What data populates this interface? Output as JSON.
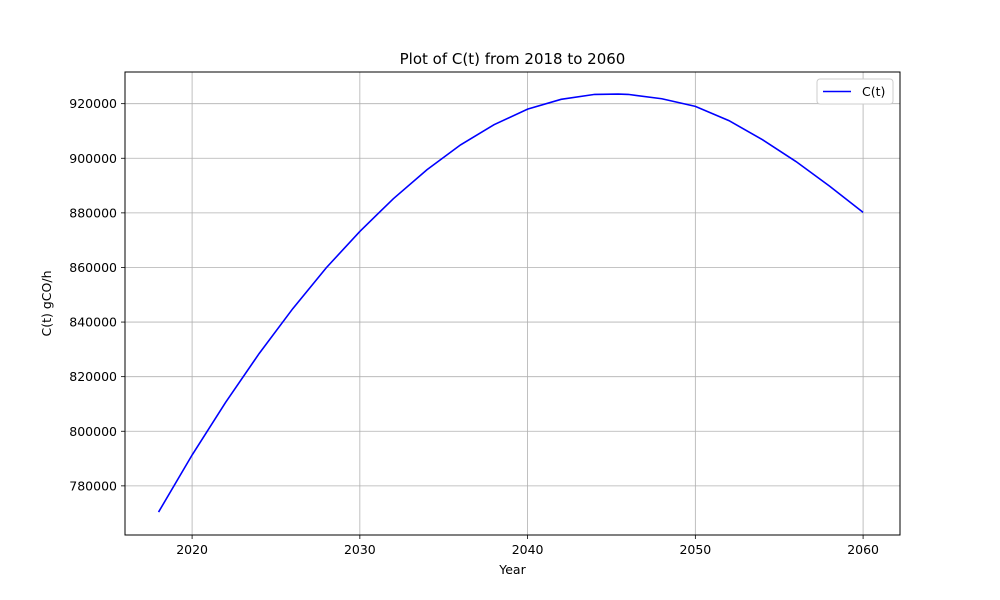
{
  "chart_data": {
    "type": "line",
    "title": "Plot of C(t) from 2018 to 2060",
    "xlabel": "Year",
    "ylabel": "C(t) gCO/h",
    "xlim": [
      2016,
      2062.2
    ],
    "ylim": [
      762000,
      931600
    ],
    "x_ticks": [
      2020,
      2030,
      2040,
      2050,
      2060
    ],
    "y_ticks": [
      780000,
      800000,
      820000,
      840000,
      860000,
      880000,
      900000,
      920000
    ],
    "grid": true,
    "legend_position": "top-right",
    "series": [
      {
        "name": "C(t)",
        "color": "#0000ff",
        "x": [
          2018,
          2020,
          2022,
          2024,
          2026,
          2028,
          2030,
          2032,
          2034,
          2036,
          2038,
          2040,
          2042,
          2044,
          2045.4,
          2046,
          2048,
          2050,
          2052,
          2054,
          2056,
          2058,
          2060
        ],
        "y": [
          770400,
          791300,
          810600,
          828500,
          844900,
          859900,
          873200,
          885200,
          895800,
          904900,
          912300,
          918000,
          921600,
          923400,
          923500,
          923400,
          921800,
          919000,
          913800,
          906800,
          898800,
          889800,
          880200
        ]
      }
    ]
  }
}
